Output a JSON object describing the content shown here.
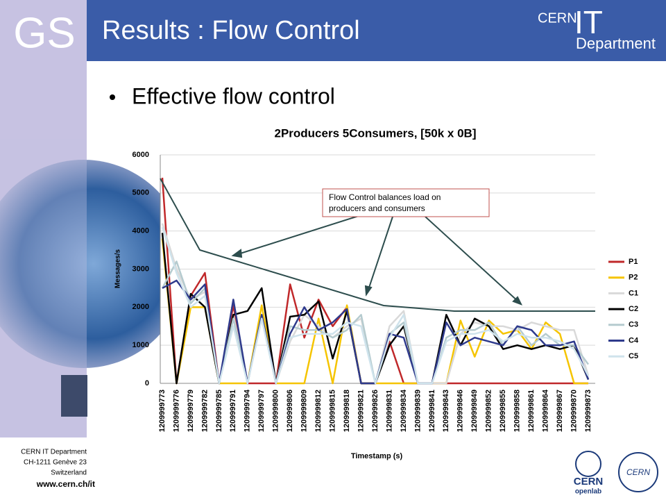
{
  "slide": {
    "logo": "GS",
    "title": "Results : Flow Control",
    "bullet": "Effective flow control",
    "header_logo": [
      "CERN",
      "IT",
      "Department"
    ],
    "footer": [
      "CERN IT Department",
      "CH-1211 Genève 23",
      "Switzerland"
    ],
    "footer_url": "www.cern.ch/it",
    "footer_logos": [
      "CERN",
      "openlab",
      "CERN"
    ]
  },
  "chart_data": {
    "type": "line",
    "title": "2Producers 5Consumers, [50k x 0B]",
    "xlabel": "Timestamp (s)",
    "ylabel": "Messages/s",
    "annotation": [
      "Flow Control balances load on",
      "producers and consumers"
    ],
    "categories": [
      "1209999773",
      "1209999776",
      "1209999779",
      "1209999782",
      "1209999785",
      "1209999791",
      "1209999794",
      "1209999797",
      "1209999800",
      "1209999806",
      "1209999809",
      "1209999812",
      "1209999815",
      "1209999818",
      "1209999821",
      "1209999826",
      "1209999831",
      "1209999834",
      "1209999839",
      "1209999841",
      "1209999843",
      "1209999846",
      "1209999849",
      "1209999852",
      "1209999855",
      "1209999858",
      "1209999861",
      "1209999864",
      "1209999867",
      "1209999870",
      "1209999873"
    ],
    "ylim": [
      0,
      6000
    ],
    "yticks": [
      0,
      1000,
      2000,
      3000,
      4000,
      5000,
      6000
    ],
    "grid": true,
    "legend": "right",
    "series": [
      {
        "name": "P1",
        "color": "#c0282a",
        "values": [
          5400,
          0,
          2300,
          2900,
          0,
          2050,
          0,
          0,
          0,
          2600,
          1200,
          2200,
          1500,
          2000,
          0,
          0,
          1100,
          0,
          0,
          0,
          0,
          0,
          0,
          0,
          0,
          0,
          0,
          0,
          0,
          0,
          0
        ]
      },
      {
        "name": "P2",
        "color": "#f5c400",
        "values": [
          3800,
          0,
          2000,
          2000,
          0,
          0,
          0,
          2050,
          0,
          0,
          0,
          1700,
          0,
          2050,
          0,
          0,
          0,
          0,
          0,
          0,
          0,
          1650,
          700,
          1650,
          1300,
          1400,
          900,
          1600,
          1300,
          0,
          0
        ]
      },
      {
        "name": "C1",
        "color": "#d9d9d9",
        "values": [
          4200,
          3000,
          2200,
          2400,
          0,
          1800,
          0,
          1700,
          0,
          1100,
          1800,
          1500,
          1200,
          1500,
          1700,
          0,
          1500,
          1900,
          0,
          0,
          0,
          1300,
          1600,
          1500,
          1500,
          1400,
          1600,
          1500,
          1400,
          1400,
          200
        ]
      },
      {
        "name": "C2",
        "color": "#000000",
        "values": [
          3950,
          0,
          2350,
          2000,
          0,
          1800,
          1900,
          2500,
          0,
          1750,
          1800,
          2150,
          650,
          1900,
          0,
          0,
          1000,
          1500,
          0,
          0,
          1800,
          1000,
          1700,
          1500,
          900,
          1000,
          900,
          1000,
          900,
          1000,
          100
        ]
      },
      {
        "name": "C3",
        "color": "#b5cbcf",
        "values": [
          2500,
          3200,
          2100,
          2500,
          0,
          1700,
          0,
          1800,
          0,
          1500,
          1400,
          1400,
          1200,
          1400,
          1800,
          0,
          1300,
          1600,
          0,
          0,
          1200,
          1400,
          1400,
          1600,
          1000,
          1500,
          1000,
          1300,
          1000,
          1000,
          500
        ]
      },
      {
        "name": "C4",
        "color": "#2e3a8c",
        "values": [
          2500,
          2700,
          2200,
          2600,
          0,
          2200,
          0,
          1800,
          0,
          1300,
          2000,
          1400,
          1600,
          1950,
          0,
          0,
          1300,
          1200,
          0,
          0,
          1600,
          1000,
          1200,
          1100,
          1000,
          1500,
          1400,
          1000,
          1000,
          1100,
          100
        ]
      },
      {
        "name": "C5",
        "color": "#cfe3ec",
        "values": [
          4100,
          2900,
          2000,
          2300,
          0,
          1500,
          0,
          1700,
          0,
          1200,
          1300,
          1300,
          1300,
          1600,
          1500,
          0,
          1200,
          1800,
          0,
          0,
          1100,
          1300,
          1300,
          1400,
          1100,
          1300,
          1200,
          1200,
          1100,
          900,
          200
        ]
      }
    ]
  }
}
